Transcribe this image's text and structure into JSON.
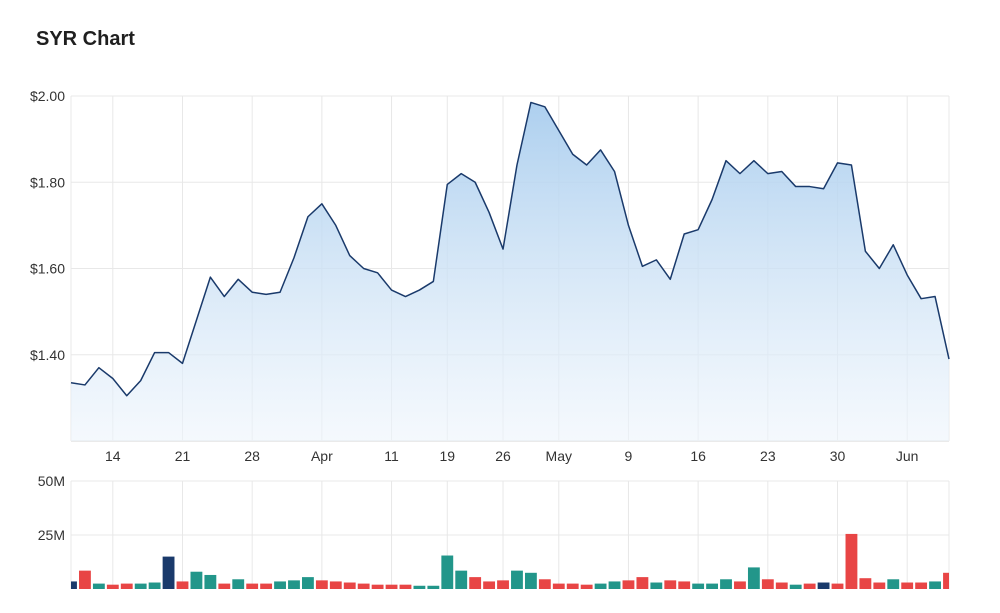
{
  "title": "SYR Chart",
  "chart_data": [
    {
      "type": "area",
      "ylim": [
        1.2,
        2.0
      ],
      "yticks": [
        {
          "value": 2.0,
          "label": "$2.00"
        },
        {
          "value": 1.8,
          "label": "$1.80"
        },
        {
          "value": 1.6,
          "label": "$1.60"
        },
        {
          "value": 1.4,
          "label": "$1.40"
        }
      ],
      "xticks": [
        {
          "index": 3,
          "label": "14"
        },
        {
          "index": 8,
          "label": "21"
        },
        {
          "index": 13,
          "label": "28"
        },
        {
          "index": 18,
          "label": "Apr"
        },
        {
          "index": 23,
          "label": "11"
        },
        {
          "index": 27,
          "label": "19"
        },
        {
          "index": 31,
          "label": "26"
        },
        {
          "index": 35,
          "label": "May"
        },
        {
          "index": 40,
          "label": "9"
        },
        {
          "index": 45,
          "label": "16"
        },
        {
          "index": 50,
          "label": "23"
        },
        {
          "index": 55,
          "label": "30"
        },
        {
          "index": 60,
          "label": "Jun"
        }
      ],
      "grid": true,
      "values": [
        1.335,
        1.33,
        1.37,
        1.345,
        1.305,
        1.34,
        1.405,
        1.405,
        1.38,
        1.48,
        1.58,
        1.535,
        1.575,
        1.545,
        1.54,
        1.545,
        1.625,
        1.72,
        1.75,
        1.7,
        1.63,
        1.6,
        1.59,
        1.55,
        1.535,
        1.55,
        1.57,
        1.795,
        1.82,
        1.8,
        1.73,
        1.645,
        1.84,
        1.985,
        1.975,
        1.92,
        1.865,
        1.84,
        1.875,
        1.825,
        1.7,
        1.605,
        1.62,
        1.575,
        1.68,
        1.69,
        1.76,
        1.85,
        1.82,
        1.85,
        1.82,
        1.825,
        1.79,
        1.79,
        1.785,
        1.845,
        1.84,
        1.64,
        1.6,
        1.655,
        1.585,
        1.53,
        1.535,
        1.39
      ],
      "color": "#1a3a6b"
    },
    {
      "type": "bar",
      "ylim": [
        0,
        50
      ],
      "yticks": [
        {
          "value": 50,
          "label": "50M"
        },
        {
          "value": 25,
          "label": "25M"
        }
      ],
      "unit": "M",
      "values": [
        3.5,
        8.5,
        2.5,
        2,
        2.5,
        2.5,
        3,
        15,
        3.5,
        8,
        6.5,
        2.5,
        4.5,
        2.5,
        2.5,
        3.5,
        4,
        5.5,
        4,
        3.5,
        3,
        2.5,
        2,
        2,
        2,
        1.5,
        1.5,
        15.5,
        8.5,
        5.5,
        3.5,
        4,
        8.5,
        7.5,
        4.5,
        2.5,
        2.5,
        2,
        2.5,
        3.5,
        4,
        5.5,
        3,
        4,
        3.5,
        2.5,
        2.5,
        4.5,
        3.5,
        10,
        4.5,
        3,
        2,
        2.5,
        3,
        2.5,
        25.5,
        5,
        3,
        4.5,
        3,
        3,
        3.5,
        7.5
      ],
      "colors": [
        "#1a3a6b",
        "#e84545",
        "#22968a",
        "#e84545",
        "#e84545",
        "#22968a",
        "#22968a",
        "#1a3a6b",
        "#e84545",
        "#22968a",
        "#22968a",
        "#e84545",
        "#22968a",
        "#e84545",
        "#e84545",
        "#22968a",
        "#22968a",
        "#22968a",
        "#e84545",
        "#e84545",
        "#e84545",
        "#e84545",
        "#e84545",
        "#e84545",
        "#e84545",
        "#22968a",
        "#22968a",
        "#22968a",
        "#22968a",
        "#e84545",
        "#e84545",
        "#e84545",
        "#22968a",
        "#22968a",
        "#e84545",
        "#e84545",
        "#e84545",
        "#e84545",
        "#22968a",
        "#22968a",
        "#e84545",
        "#e84545",
        "#22968a",
        "#e84545",
        "#e84545",
        "#22968a",
        "#22968a",
        "#22968a",
        "#e84545",
        "#22968a",
        "#e84545",
        "#e84545",
        "#22968a",
        "#e84545",
        "#1a3a6b",
        "#e84545",
        "#e84545",
        "#e84545",
        "#e84545",
        "#22968a",
        "#e84545",
        "#e84545",
        "#22968a",
        "#e84545"
      ]
    }
  ]
}
